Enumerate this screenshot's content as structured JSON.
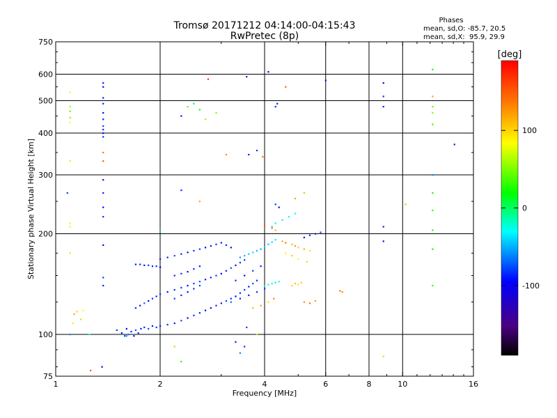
{
  "title": "Tromsø 20171212 04:14:00-04:15:43",
  "subtitle": "RwPretec (8p)",
  "stats": {
    "heading": "Phases",
    "line_o": "mean, sd,O: -85.7, 20.5",
    "line_x": "mean, sd,X:  95.9, 29.9"
  },
  "colorbar": {
    "label": "[deg]",
    "ticks": [
      {
        "value": 100,
        "label": "100"
      },
      {
        "value": 0,
        "label": "0"
      },
      {
        "value": -100,
        "label": "-100"
      }
    ],
    "range": [
      -190,
      190
    ]
  },
  "chart_data": {
    "type": "scatter",
    "title": "Tromsø 20171212 04:14:00-04:15:43",
    "subtitle": "RwPretec (8p)",
    "xlabel": "Frequency [MHz]",
    "ylabel": "Stationary phase Virtual Height [km]",
    "xscale": "log",
    "yscale": "log",
    "xlim": [
      1,
      16
    ],
    "ylim": [
      75,
      750
    ],
    "xticks": [
      1,
      2,
      4,
      6,
      8,
      10,
      16
    ],
    "yticks": [
      75,
      100,
      200,
      300,
      400,
      500,
      600,
      750
    ],
    "grid_x": [
      2,
      4,
      6,
      8,
      10
    ],
    "grid_y": [
      100,
      200,
      300,
      400,
      500,
      600
    ],
    "grid": true,
    "color_axis": {
      "label": "[deg]",
      "range": [
        -190,
        190
      ]
    },
    "points": [
      [
        1.5,
        103,
        -85
      ],
      [
        1.55,
        101,
        -92
      ],
      [
        1.58,
        99,
        -80
      ],
      [
        1.6,
        104,
        -95
      ],
      [
        1.62,
        100,
        -70
      ],
      [
        1.65,
        102,
        -88
      ],
      [
        1.68,
        99,
        -100
      ],
      [
        1.7,
        103,
        -75
      ],
      [
        1.73,
        101,
        -82
      ],
      [
        1.76,
        104,
        -90
      ],
      [
        1.8,
        105,
        -85
      ],
      [
        1.85,
        104,
        -78
      ],
      [
        1.9,
        106,
        -92
      ],
      [
        1.95,
        105,
        -80
      ],
      [
        2.0,
        106,
        -88
      ],
      [
        2.1,
        107,
        -84
      ],
      [
        2.2,
        108,
        -90
      ],
      [
        2.3,
        110,
        -76
      ],
      [
        2.4,
        112,
        -95
      ],
      [
        2.5,
        114,
        -82
      ],
      [
        2.6,
        116,
        -88
      ],
      [
        2.7,
        118,
        -100
      ],
      [
        2.8,
        120,
        -120
      ],
      [
        2.9,
        122,
        -86
      ],
      [
        3.0,
        124,
        -90
      ],
      [
        3.1,
        126,
        -78
      ],
      [
        3.2,
        128,
        -85
      ],
      [
        3.3,
        130,
        -95
      ],
      [
        3.4,
        133,
        -88
      ],
      [
        3.5,
        136,
        -80
      ],
      [
        3.6,
        139,
        -92
      ],
      [
        3.7,
        142,
        -76
      ],
      [
        3.8,
        145,
        -88
      ],
      [
        1.7,
        120,
        -84
      ],
      [
        1.75,
        122,
        -90
      ],
      [
        1.8,
        124,
        -70
      ],
      [
        1.85,
        126,
        -95
      ],
      [
        1.9,
        128,
        -82
      ],
      [
        1.95,
        130,
        -88
      ],
      [
        2.0,
        132,
        -78
      ],
      [
        2.1,
        134,
        -92
      ],
      [
        2.2,
        136,
        -85
      ],
      [
        2.3,
        138,
        -80
      ],
      [
        2.4,
        140,
        -96
      ],
      [
        2.5,
        142,
        -84
      ],
      [
        2.6,
        144,
        -75
      ],
      [
        2.7,
        146,
        -90
      ],
      [
        2.8,
        148,
        -86
      ],
      [
        2.9,
        150,
        -80
      ],
      [
        3.0,
        152,
        -95
      ],
      [
        3.1,
        155,
        -88
      ],
      [
        3.2,
        158,
        -78
      ],
      [
        3.3,
        161,
        -92
      ],
      [
        3.4,
        164,
        -84
      ],
      [
        3.5,
        167,
        -80
      ],
      [
        1.7,
        162,
        -90
      ],
      [
        1.75,
        162,
        -86
      ],
      [
        1.8,
        161,
        -92
      ],
      [
        1.85,
        161,
        -80
      ],
      [
        1.9,
        160,
        -88
      ],
      [
        1.95,
        160,
        -84
      ],
      [
        2.0,
        159,
        -95
      ],
      [
        2.0,
        168,
        -86
      ],
      [
        2.1,
        170,
        -90
      ],
      [
        2.2,
        172,
        -78
      ],
      [
        2.3,
        174,
        -88
      ],
      [
        2.4,
        176,
        -95
      ],
      [
        2.5,
        178,
        -84
      ],
      [
        2.6,
        180,
        -80
      ],
      [
        2.7,
        182,
        -96
      ],
      [
        2.8,
        184,
        -88
      ],
      [
        2.9,
        186,
        -82
      ],
      [
        3.0,
        188,
        -90
      ],
      [
        3.1,
        185,
        -85
      ],
      [
        3.2,
        182,
        -92
      ],
      [
        2.2,
        128,
        -80
      ],
      [
        2.3,
        131,
        -86
      ],
      [
        2.4,
        134,
        -92
      ],
      [
        2.5,
        137,
        -84
      ],
      [
        2.6,
        140,
        -78
      ],
      [
        2.2,
        150,
        -88
      ],
      [
        2.3,
        152,
        -82
      ],
      [
        2.4,
        154,
        -95
      ],
      [
        2.5,
        157,
        -86
      ],
      [
        2.6,
        160,
        -90
      ],
      [
        3.2,
        125,
        -70
      ],
      [
        3.4,
        128,
        -88
      ],
      [
        3.6,
        131,
        -92
      ],
      [
        3.8,
        134,
        -84
      ],
      [
        4.0,
        137,
        -80
      ],
      [
        3.3,
        145,
        -86
      ],
      [
        3.5,
        150,
        -95
      ],
      [
        3.7,
        155,
        -82
      ],
      [
        3.9,
        160,
        -90
      ],
      [
        3.4,
        170,
        -55
      ],
      [
        3.5,
        172,
        -50
      ],
      [
        3.6,
        174,
        -45
      ],
      [
        3.7,
        176,
        -40
      ],
      [
        3.8,
        178,
        -48
      ],
      [
        3.9,
        180,
        -52
      ],
      [
        4.0,
        183,
        -42
      ],
      [
        4.1,
        186,
        -45
      ],
      [
        4.2,
        189,
        -38
      ],
      [
        4.3,
        192,
        -35
      ],
      [
        4.0,
        140,
        -35
      ],
      [
        4.1,
        141,
        -30
      ],
      [
        4.2,
        142,
        -28
      ],
      [
        4.3,
        143,
        -32
      ],
      [
        4.4,
        144,
        -25
      ],
      [
        4.2,
        210,
        -40
      ],
      [
        4.3,
        215,
        -30
      ],
      [
        4.5,
        220,
        -35
      ],
      [
        4.7,
        225,
        -28
      ],
      [
        4.9,
        230,
        -32
      ],
      [
        4.0,
        212,
        150
      ],
      [
        4.2,
        208,
        130
      ],
      [
        4.3,
        205,
        110
      ],
      [
        4.5,
        190,
        120
      ],
      [
        4.6,
        188,
        140
      ],
      [
        4.8,
        186,
        110
      ],
      [
        4.9,
        184,
        125
      ],
      [
        5.0,
        182,
        100
      ],
      [
        5.2,
        180,
        115
      ],
      [
        5.4,
        178,
        95
      ],
      [
        4.6,
        175,
        90
      ],
      [
        4.8,
        172,
        105
      ],
      [
        5.0,
        168,
        85
      ],
      [
        5.3,
        165,
        100
      ],
      [
        4.8,
        140,
        100
      ],
      [
        4.9,
        142,
        110
      ],
      [
        5.0,
        141,
        95
      ],
      [
        5.1,
        143,
        105
      ],
      [
        5.2,
        195,
        -95
      ],
      [
        5.4,
        198,
        -85
      ],
      [
        5.6,
        200,
        -90
      ],
      [
        5.8,
        202,
        -78
      ],
      [
        5.2,
        125,
        130
      ],
      [
        5.4,
        124,
        140
      ],
      [
        5.6,
        126,
        120
      ],
      [
        6.6,
        135,
        140
      ],
      [
        6.7,
        134,
        130
      ],
      [
        1.12,
        108,
        90
      ],
      [
        1.13,
        115,
        120
      ],
      [
        1.15,
        117,
        100
      ],
      [
        1.2,
        118,
        80
      ],
      [
        1.18,
        111,
        60
      ],
      [
        1.1,
        100,
        -60
      ],
      [
        1.25,
        100,
        -30
      ],
      [
        1.37,
        140,
        -90
      ],
      [
        1.37,
        148,
        -80
      ],
      [
        1.37,
        185,
        -95
      ],
      [
        1.37,
        225,
        -85
      ],
      [
        1.37,
        240,
        -100
      ],
      [
        1.37,
        265,
        -90
      ],
      [
        1.37,
        290,
        -120
      ],
      [
        1.37,
        390,
        -85
      ],
      [
        1.37,
        400,
        -95
      ],
      [
        1.37,
        410,
        -88
      ],
      [
        1.37,
        420,
        -80
      ],
      [
        1.37,
        440,
        -90
      ],
      [
        1.37,
        460,
        -100
      ],
      [
        1.37,
        490,
        -85
      ],
      [
        1.37,
        510,
        -90
      ],
      [
        1.37,
        550,
        -95
      ],
      [
        1.37,
        565,
        -88
      ],
      [
        1.37,
        350,
        140
      ],
      [
        1.37,
        330,
        150
      ],
      [
        1.36,
        80,
        -110
      ],
      [
        1.1,
        480,
        60
      ],
      [
        1.1,
        465,
        40
      ],
      [
        1.1,
        445,
        50
      ],
      [
        1.1,
        430,
        80
      ],
      [
        1.1,
        530,
        90
      ],
      [
        1.1,
        330,
        70
      ],
      [
        1.1,
        210,
        90
      ],
      [
        1.1,
        215,
        80
      ],
      [
        1.1,
        175,
        70
      ],
      [
        1.08,
        265,
        -80
      ],
      [
        1.26,
        78,
        150
      ],
      [
        1.6,
        99,
        -60
      ],
      [
        2.3,
        450,
        -90
      ],
      [
        2.4,
        480,
        40
      ],
      [
        2.5,
        490,
        0
      ],
      [
        2.6,
        470,
        20
      ],
      [
        2.7,
        440,
        60
      ],
      [
        2.9,
        460,
        50
      ],
      [
        2.0,
        205,
        -40
      ],
      [
        2.3,
        270,
        -85
      ],
      [
        2.6,
        250,
        120
      ],
      [
        2.75,
        580,
        170
      ],
      [
        3.1,
        345,
        130
      ],
      [
        3.6,
        345,
        -90
      ],
      [
        3.8,
        355,
        -85
      ],
      [
        3.95,
        340,
        140
      ],
      [
        3.55,
        590,
        -90
      ],
      [
        4.1,
        610,
        -95
      ],
      [
        4.3,
        480,
        -85
      ],
      [
        4.35,
        490,
        -90
      ],
      [
        4.6,
        550,
        150
      ],
      [
        4.3,
        245,
        -80
      ],
      [
        4.4,
        240,
        -95
      ],
      [
        4.9,
        255,
        120
      ],
      [
        5.2,
        265,
        110
      ],
      [
        6.0,
        575,
        -90
      ],
      [
        8.8,
        565,
        -95
      ],
      [
        8.8,
        515,
        -85
      ],
      [
        8.8,
        480,
        -90
      ],
      [
        8.8,
        210,
        -88
      ],
      [
        8.8,
        190,
        -95
      ],
      [
        8.8,
        86,
        60
      ],
      [
        10.2,
        245,
        110
      ],
      [
        12.2,
        620,
        20
      ],
      [
        12.2,
        515,
        120
      ],
      [
        12.2,
        480,
        40
      ],
      [
        12.2,
        460,
        50
      ],
      [
        12.2,
        425,
        30
      ],
      [
        12.2,
        300,
        -60
      ],
      [
        12.2,
        265,
        20
      ],
      [
        12.2,
        235,
        30
      ],
      [
        12.2,
        205,
        10
      ],
      [
        12.2,
        180,
        20
      ],
      [
        12.2,
        140,
        30
      ],
      [
        14.1,
        370,
        -90
      ],
      [
        3.7,
        120,
        110
      ],
      [
        3.9,
        122,
        120
      ],
      [
        4.1,
        125,
        100
      ],
      [
        4.25,
        128,
        130
      ],
      [
        3.3,
        95,
        -90
      ],
      [
        3.5,
        92,
        -85
      ],
      [
        3.8,
        100,
        60
      ],
      [
        2.2,
        92,
        110
      ],
      [
        2.3,
        83,
        30
      ],
      [
        3.4,
        88,
        -60
      ],
      [
        3.55,
        105,
        -80
      ]
    ]
  }
}
